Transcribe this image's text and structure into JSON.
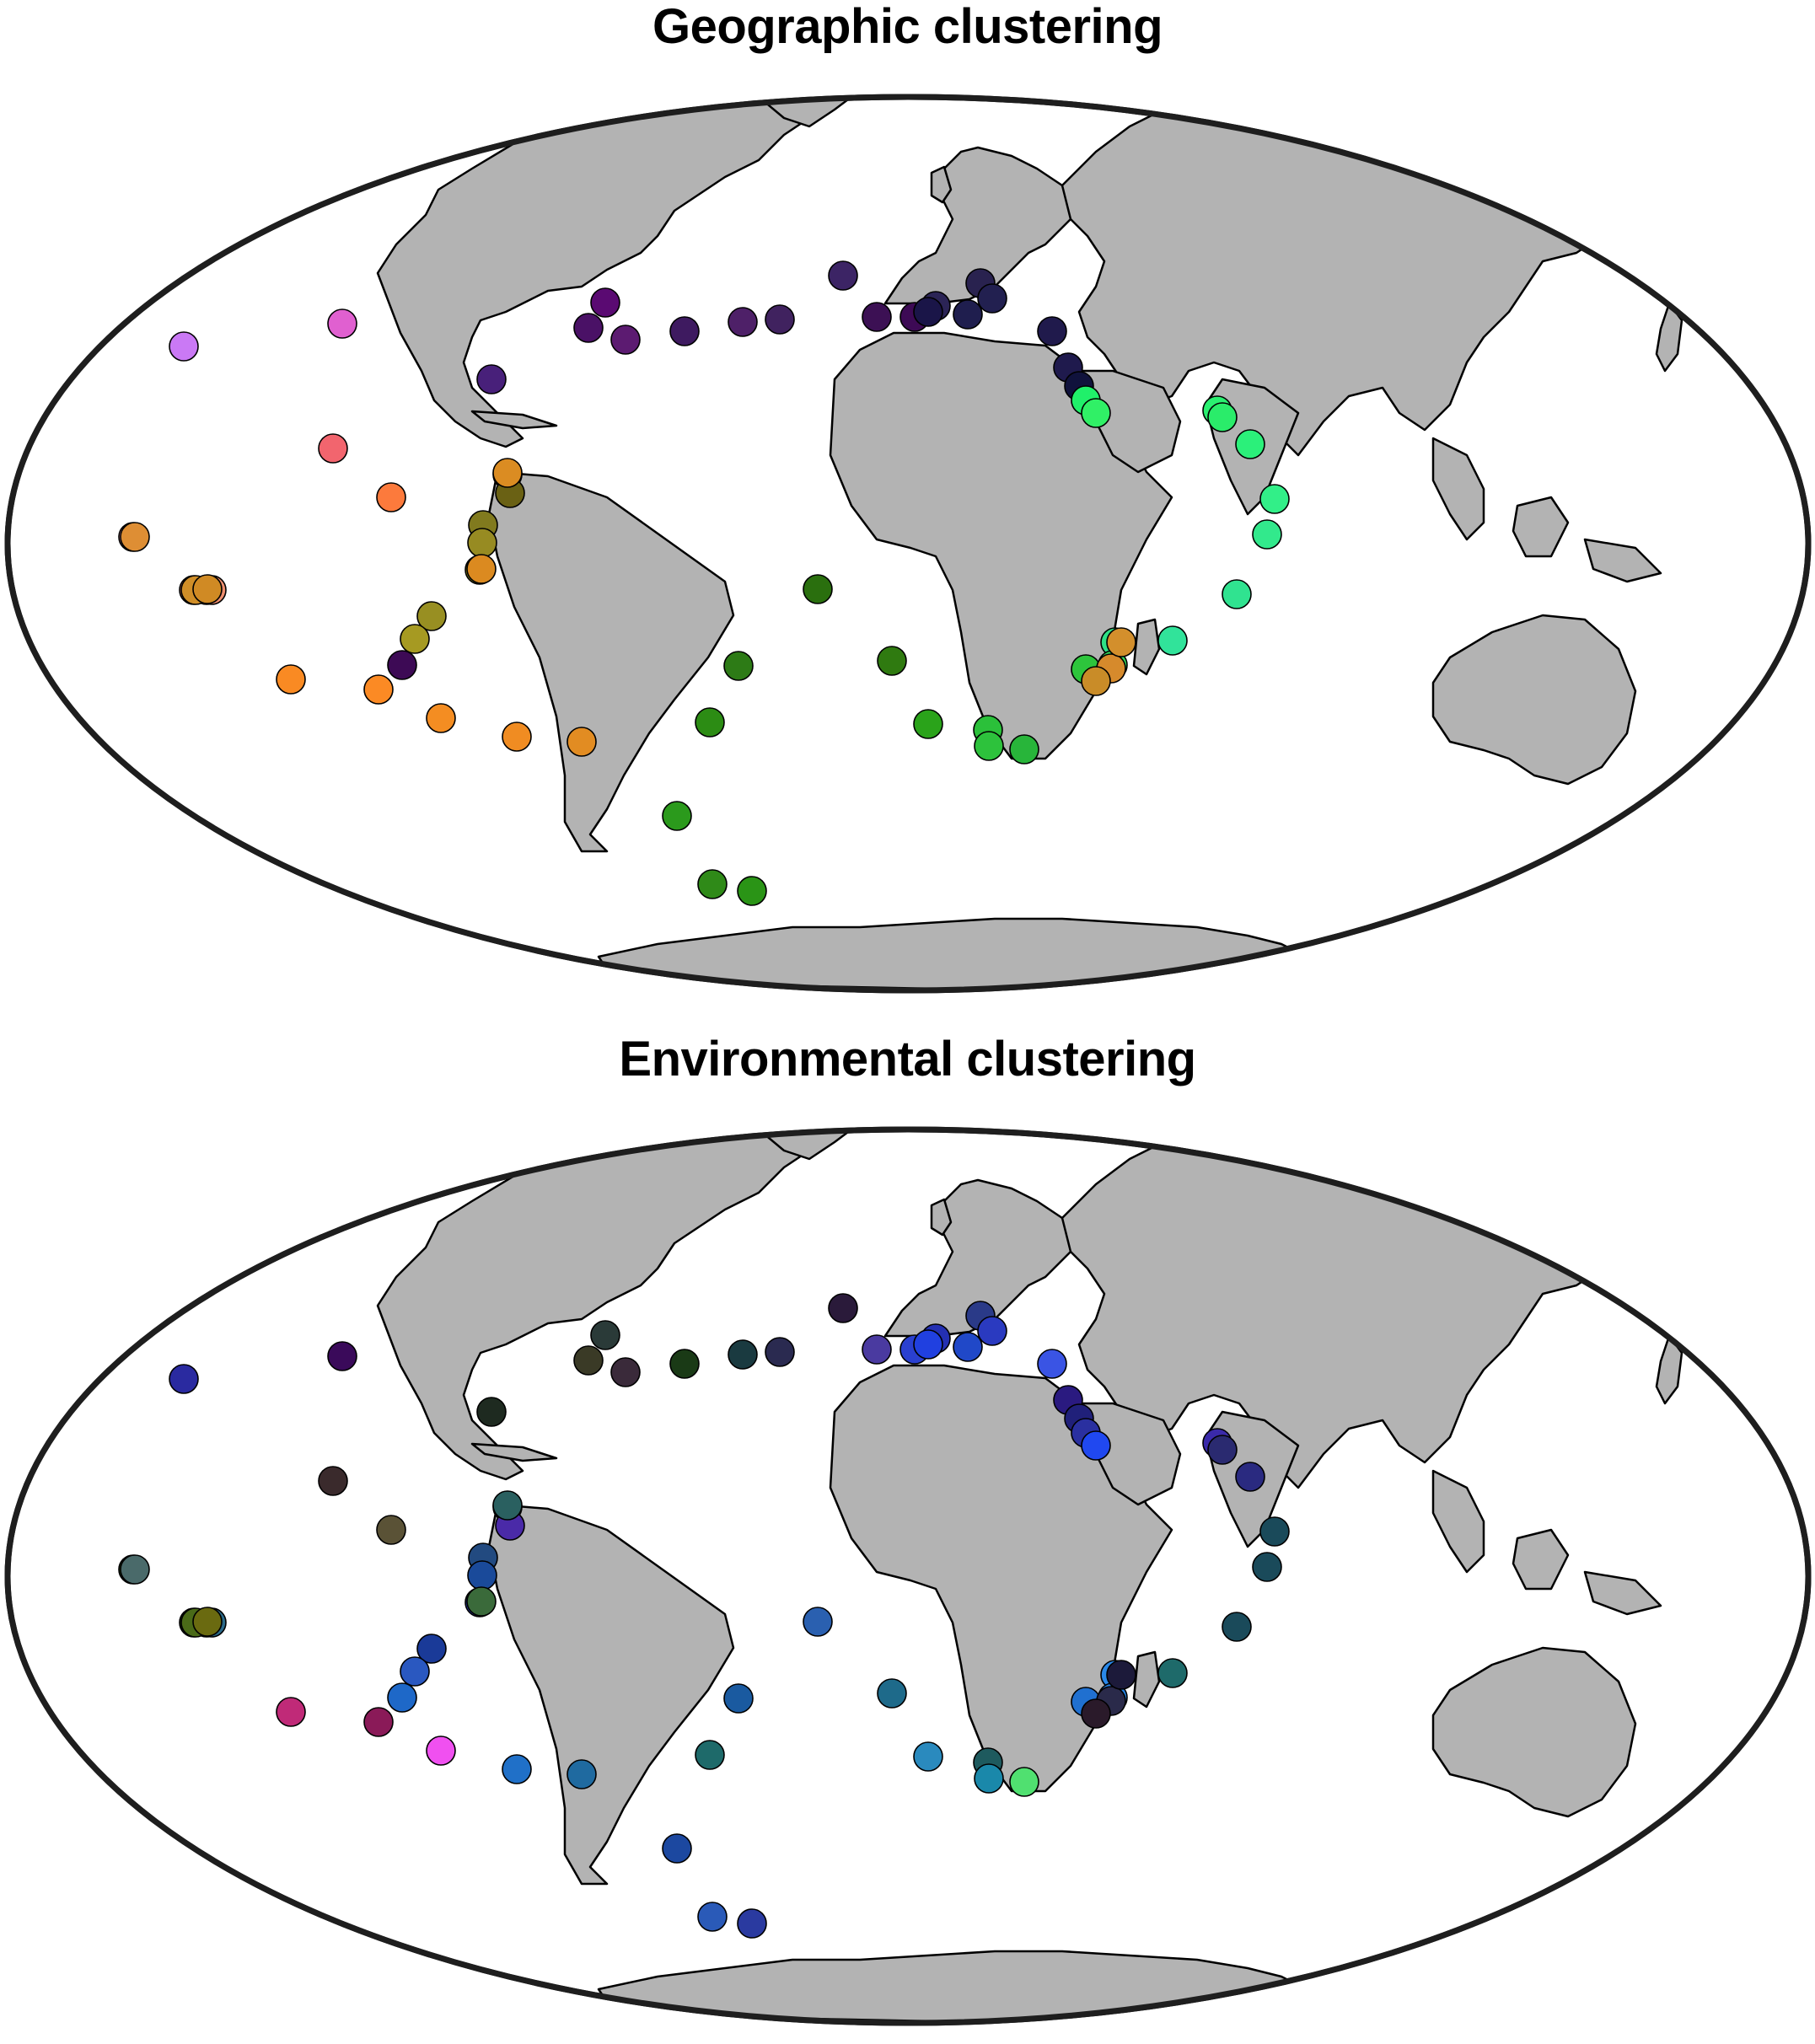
{
  "figure": {
    "panels": [
      {
        "id": "geo",
        "title": "Geographic clustering",
        "colors": [
          "#ca79f5",
          "#e060d0",
          "#f2656e",
          "#fc7a3c",
          "#e39aa8",
          "#ee8d74",
          "#ef9877",
          "#ef8f70",
          "#5a0a72",
          "#4a1166",
          "#5c1b71",
          "#3e1a60",
          "#4e2068",
          "#40225f",
          "#3c2465",
          "#48207a",
          "#3c1054",
          "#3d0a55",
          "#2b2456",
          "#29224f",
          "#222050",
          "#1f1e4e",
          "#1a1548",
          "#201a4c",
          "#1f1a4d",
          "#10123c",
          "#20f06a",
          "#30f066",
          "#2af070",
          "#2aec6a",
          "#2bf07a",
          "#32ef88",
          "#32e98c",
          "#30e390",
          "#31e39a",
          "#2ee085",
          "#33d95a",
          "#2dc53c",
          "#2bc03a",
          "#28b53a",
          "#2dc23c",
          "#2aa31a",
          "#2f7a10",
          "#2a6f0e",
          "#2d7b16",
          "#2c8c14",
          "#2b9a1c",
          "#2f8a18",
          "#2a9416",
          "#3a5b0e",
          "#6a6114",
          "#817a1e",
          "#978b22",
          "#8e9020",
          "#988f22",
          "#a69a22",
          "#3d0a55",
          "#fb8a24",
          "#f98a23",
          "#f48d22",
          "#f08c22",
          "#e28c22",
          "#db8c22",
          "#db8a20",
          "#d08e28",
          "#d08a24",
          "#de8e34",
          "#d68a2c",
          "#c98c28",
          "#d38f2c"
        ]
      },
      {
        "id": "env",
        "title": "Environmental clustering",
        "colors": [
          "#2a2aa0",
          "#3a0a5a",
          "#3a2a2c",
          "#5a5236",
          "#2a4a0a",
          "#2a4812",
          "#3a5a10",
          "#2a6a8a",
          "#2a3a38",
          "#3a3a26",
          "#3a2a3a",
          "#1a3a16",
          "#1a3a40",
          "#2a2a50",
          "#2a1a3a",
          "#1e2a20",
          "#4a3aa0",
          "#2a40d0",
          "#2430b2",
          "#2a3a88",
          "#2a3ac0",
          "#2048c8",
          "#2040e0",
          "#3a54e4",
          "#2a1a80",
          "#20207a",
          "#2a30a0",
          "#2048f0",
          "#3a2aaa",
          "#2a2a70",
          "#2a2a80",
          "#1a4a5a",
          "#1a4a5a",
          "#1a4a5a",
          "#1e6a6a",
          "#2a88e8",
          "#2480e0",
          "#2070d0",
          "#1e5a5e",
          "#50e070",
          "#1a88aa",
          "#2a8abe",
          "#1e6a8a",
          "#2a60b0",
          "#1a5aa0",
          "#1e6a6a",
          "#1c48a0",
          "#2a5ab8",
          "#2a3aa0",
          "#3a1aa0",
          "#4a2aa8",
          "#224a80",
          "#1a4a9a",
          "#2a40b0",
          "#1a3a98",
          "#2a58c0",
          "#1e68c8",
          "#8a1a58",
          "#c02a78",
          "#f050f0",
          "#2070c8",
          "#1f6aa0",
          "#2a6060",
          "#3a6a3a",
          "#4a6a18",
          "#6a6a10",
          "#4a6a6a",
          "#2a2a4a",
          "#2a1a2a",
          "#1c1a3a"
        ]
      }
    ]
  }
}
